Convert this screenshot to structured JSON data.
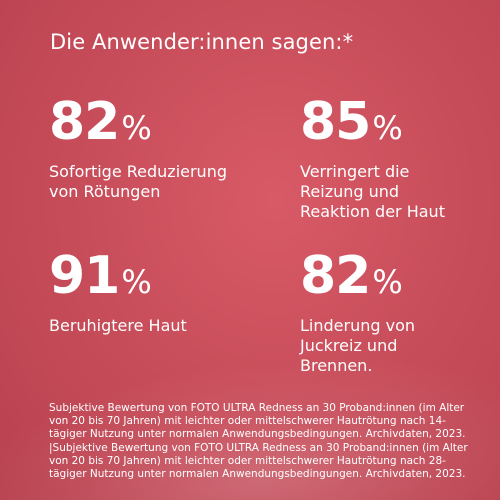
{
  "heading": "Die Anwender:innen sagen:*",
  "stats": [
    {
      "value": "82",
      "unit": "%",
      "label": "Sofortige Reduzierung\nvon Rötungen"
    },
    {
      "value": "85",
      "unit": "%",
      "label": "Verringert die\nReizung und\nReaktion der Haut"
    },
    {
      "value": "91",
      "unit": "%",
      "label": "Beruhigtere Haut"
    },
    {
      "value": "82",
      "unit": "%",
      "label": "Linderung von\nJuckreiz und\nBrennen."
    }
  ],
  "footnote": "Subjektive Bewertung von FOTO ULTRA Redness an 30 Proband:innen (im Alter von 20 bis 70 Jahren) mit leichter oder mittelschwerer Hautrötung nach 14-tägiger Nutzung unter normalen Anwendungsbedingungen. Archivdaten, 2023. |Subjektive Bewertung von FOTO ULTRA Redness an 30 Proband:innen (im Alter von 20 bis 70 Jahren) mit leichter oder mittelschwerer Hautrötung nach 28-tägiger Nutzung unter normalen Anwendungsbedingungen. Archivdaten, 2023.",
  "colors": {
    "background": "#c94e5b",
    "text": "#ffffff"
  }
}
